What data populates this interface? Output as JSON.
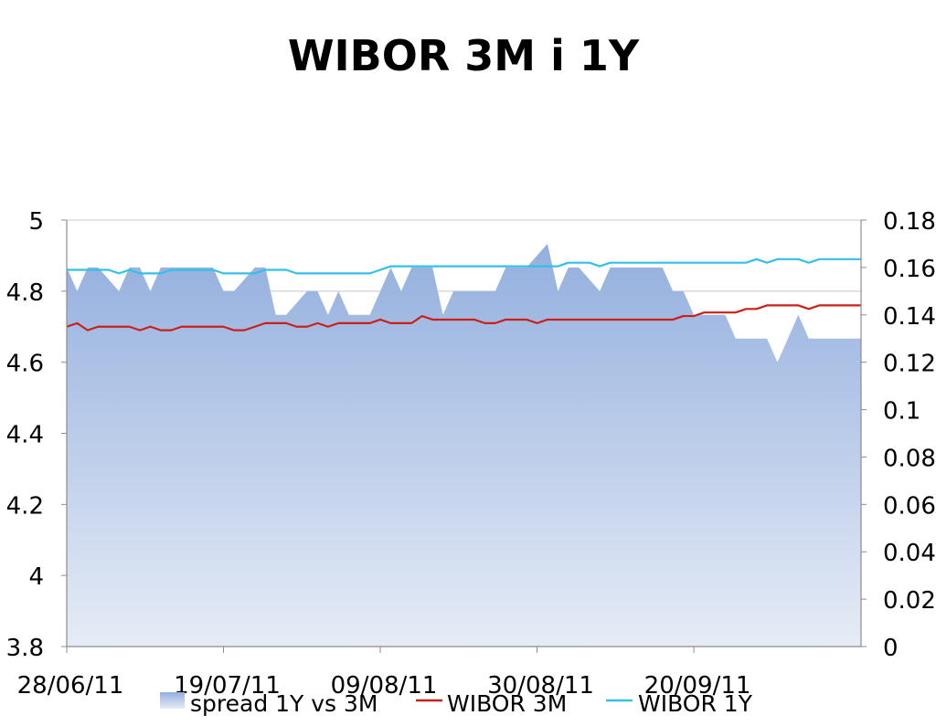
{
  "chart_data": {
    "type": "line",
    "title": "WIBOR 3M i 1Y",
    "x_tick_labels": [
      "28/06/11",
      "19/07/11",
      "09/08/11",
      "30/08/11",
      "20/09/11"
    ],
    "y_left": {
      "ylim": [
        3.8,
        5
      ],
      "ticks": [
        "3.8",
        "4",
        "4.2",
        "4.4",
        "4.6",
        "4.8",
        "5"
      ]
    },
    "y_right": {
      "ylim": [
        0,
        0.18
      ],
      "ticks": [
        "0",
        "0.02",
        "0.04",
        "0.06",
        "0.08",
        "0.1",
        "0.12",
        "0.14",
        "0.16",
        "0.18"
      ]
    },
    "grid": true,
    "legend": {
      "position": "bottom",
      "entries": [
        "spread 1Y vs 3M",
        "WIBOR 3M",
        "WIBOR 1Y"
      ]
    },
    "series": [
      {
        "name": "spread 1Y vs 3M",
        "kind": "area",
        "axis": "right",
        "color": "#9db6e0",
        "values": [
          0.16,
          0.15,
          0.16,
          0.16,
          0.155,
          0.15,
          0.16,
          0.16,
          0.15,
          0.16,
          0.16,
          0.16,
          0.16,
          0.16,
          0.16,
          0.15,
          0.15,
          0.155,
          0.16,
          0.16,
          0.14,
          0.14,
          0.145,
          0.15,
          0.15,
          0.14,
          0.15,
          0.14,
          0.14,
          0.14,
          0.15,
          0.16,
          0.15,
          0.16,
          0.16,
          0.16,
          0.14,
          0.15,
          0.15,
          0.15,
          0.15,
          0.15,
          0.16,
          0.16,
          0.16,
          0.165,
          0.17,
          0.15,
          0.16,
          0.16,
          0.155,
          0.15,
          0.16,
          0.16,
          0.16,
          0.16,
          0.16,
          0.16,
          0.15,
          0.15,
          0.14,
          0.14,
          0.14,
          0.14,
          0.13,
          0.13,
          0.13,
          0.13,
          0.12,
          0.13,
          0.14,
          0.13,
          0.13,
          0.13,
          0.13,
          0.13,
          0.13
        ]
      },
      {
        "name": "WIBOR 3M",
        "kind": "line",
        "axis": "left",
        "color": "#cc1f1a",
        "values": [
          4.7,
          4.71,
          4.69,
          4.7,
          4.7,
          4.7,
          4.7,
          4.69,
          4.7,
          4.69,
          4.69,
          4.7,
          4.7,
          4.7,
          4.7,
          4.7,
          4.69,
          4.69,
          4.7,
          4.71,
          4.71,
          4.71,
          4.7,
          4.7,
          4.71,
          4.7,
          4.71,
          4.71,
          4.71,
          4.71,
          4.72,
          4.71,
          4.71,
          4.71,
          4.73,
          4.72,
          4.72,
          4.72,
          4.72,
          4.72,
          4.71,
          4.71,
          4.72,
          4.72,
          4.72,
          4.71,
          4.72,
          4.72,
          4.72,
          4.72,
          4.72,
          4.72,
          4.72,
          4.72,
          4.72,
          4.72,
          4.72,
          4.72,
          4.72,
          4.73,
          4.73,
          4.74,
          4.74,
          4.74,
          4.74,
          4.75,
          4.75,
          4.76,
          4.76,
          4.76,
          4.76,
          4.75,
          4.76,
          4.76,
          4.76,
          4.76,
          4.76
        ]
      },
      {
        "name": "WIBOR 1Y",
        "kind": "line",
        "axis": "left",
        "color": "#33c0e8",
        "values": [
          4.86,
          4.86,
          4.86,
          4.86,
          4.86,
          4.85,
          4.86,
          4.85,
          4.85,
          4.85,
          4.86,
          4.86,
          4.86,
          4.86,
          4.86,
          4.85,
          4.85,
          4.85,
          4.85,
          4.86,
          4.86,
          4.86,
          4.85,
          4.85,
          4.85,
          4.85,
          4.85,
          4.85,
          4.85,
          4.85,
          4.86,
          4.87,
          4.87,
          4.87,
          4.87,
          4.87,
          4.87,
          4.87,
          4.87,
          4.87,
          4.87,
          4.87,
          4.87,
          4.87,
          4.87,
          4.87,
          4.87,
          4.87,
          4.88,
          4.88,
          4.88,
          4.87,
          4.88,
          4.88,
          4.88,
          4.88,
          4.88,
          4.88,
          4.88,
          4.88,
          4.88,
          4.88,
          4.88,
          4.88,
          4.88,
          4.88,
          4.89,
          4.88,
          4.89,
          4.89,
          4.89,
          4.88,
          4.89,
          4.89,
          4.89,
          4.89,
          4.89
        ]
      }
    ]
  }
}
